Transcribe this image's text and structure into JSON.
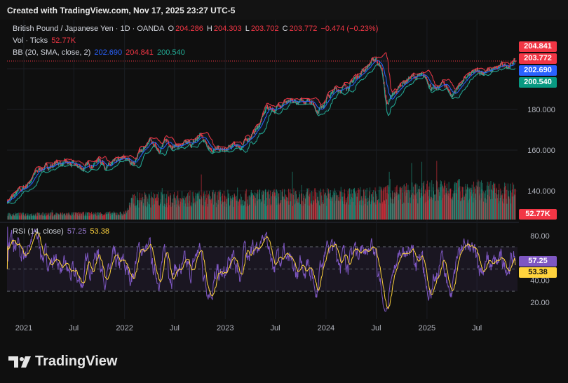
{
  "header": {
    "created": "Created with TradingView.com, Nov 17, 2025 23:27 UTC-5"
  },
  "legend": {
    "title": "British Pound / Japanese Yen · 1D · OANDA",
    "o_label": "O",
    "o_value": "204.286",
    "h_label": "H",
    "h_value": "204.303",
    "l_label": "L",
    "l_value": "203.702",
    "c_label": "C",
    "c_value": "203.772",
    "change": "−0.474 (−0.23%)",
    "vol_label": "Vol · Ticks",
    "vol_value": "52.77K",
    "bb_label": "BB (20, SMA, close, 2)",
    "bb_basis": "202.690",
    "bb_upper": "204.841",
    "bb_lower": "200.540",
    "rsi_label": "RSI (14, close)",
    "rsi_value": "57.25",
    "rsi_ma": "53.38"
  },
  "badges": {
    "upper": "204.841",
    "last": "203.772",
    "basis": "202.690",
    "lower": "200.540",
    "volume": "52.77K",
    "rsi": "57.25",
    "rsi_ma": "53.38"
  },
  "colors": {
    "up": "#22ab94",
    "down": "#f23645",
    "bb_upper": "#f23645",
    "bb_basis": "#2962ff",
    "bb_lower": "#22ab94",
    "rsi": "#7e57c2",
    "rsi_ma": "#ffd33d",
    "background": "#0f0f0f"
  },
  "chart_data": [
    {
      "type": "line",
      "name": "price",
      "ylim": [
        126,
        214
      ],
      "y_ticks": [
        "140.000",
        "160.000",
        "180.000",
        "200.000"
      ],
      "y_tick_values": [
        140,
        160,
        180,
        200
      ],
      "x_ticks": [
        "2021",
        "Jul",
        "2022",
        "Jul",
        "2023",
        "Jul",
        "2024",
        "Jul",
        "2025",
        "Jul"
      ],
      "x_tick_dates": [
        "2021-01-01",
        "2021-07-01",
        "2022-01-01",
        "2022-07-01",
        "2023-01-01",
        "2023-07-01",
        "2024-01-01",
        "2024-07-01",
        "2025-01-01",
        "2025-07-01"
      ],
      "x_range": [
        "2020-11-01",
        "2025-11-25"
      ],
      "series": [
        {
          "values": [
            [
              "2020-11-01",
              135
            ],
            [
              "2020-12-01",
              138
            ],
            [
              "2021-01-01",
              141
            ],
            [
              "2021-02-01",
              147
            ],
            [
              "2021-03-01",
              151
            ],
            [
              "2021-04-01",
              152
            ],
            [
              "2021-05-01",
              154
            ],
            [
              "2021-06-01",
              153
            ],
            [
              "2021-07-01",
              152
            ],
            [
              "2021-08-01",
              151
            ],
            [
              "2021-09-01",
              153
            ],
            [
              "2021-10-01",
              156
            ],
            [
              "2021-11-01",
              152
            ],
            [
              "2021-12-01",
              153
            ],
            [
              "2022-01-01",
              155
            ],
            [
              "2022-02-01",
              154
            ],
            [
              "2022-03-01",
              160
            ],
            [
              "2022-04-01",
              163
            ],
            [
              "2022-05-01",
              161
            ],
            [
              "2022-06-01",
              164
            ],
            [
              "2022-07-01",
              163
            ],
            [
              "2022-08-01",
              162
            ],
            [
              "2022-09-01",
              162
            ],
            [
              "2022-10-01",
              167
            ],
            [
              "2022-11-01",
              163
            ],
            [
              "2022-12-01",
              160
            ],
            [
              "2023-01-01",
              159
            ],
            [
              "2023-02-01",
              162
            ],
            [
              "2023-03-01",
              162
            ],
            [
              "2023-04-01",
              167
            ],
            [
              "2023-05-01",
              172
            ],
            [
              "2023-06-01",
              181
            ],
            [
              "2023-07-01",
              180
            ],
            [
              "2023-08-01",
              185
            ],
            [
              "2023-09-01",
              182
            ],
            [
              "2023-10-01",
              183
            ],
            [
              "2023-11-01",
              186
            ],
            [
              "2023-12-01",
              180
            ],
            [
              "2024-01-01",
              186
            ],
            [
              "2024-02-01",
              189
            ],
            [
              "2024-03-01",
              191
            ],
            [
              "2024-04-01",
              193
            ],
            [
              "2024-05-01",
              198
            ],
            [
              "2024-06-01",
              202
            ],
            [
              "2024-07-01",
              205
            ],
            [
              "2024-07-20",
              200
            ],
            [
              "2024-08-05",
              183
            ],
            [
              "2024-09-01",
              186
            ],
            [
              "2024-10-01",
              193
            ],
            [
              "2024-11-01",
              196
            ],
            [
              "2024-12-01",
              196
            ],
            [
              "2025-01-01",
              194
            ],
            [
              "2025-02-01",
              189
            ],
            [
              "2025-03-01",
              193
            ],
            [
              "2025-04-01",
              187
            ],
            [
              "2025-05-01",
              193
            ],
            [
              "2025-06-01",
              196
            ],
            [
              "2025-07-01",
              198
            ],
            [
              "2025-08-01",
              199
            ],
            [
              "2025-09-01",
              199
            ],
            [
              "2025-10-01",
              201
            ],
            [
              "2025-11-17",
              203.772
            ]
          ]
        }
      ],
      "volume_series": {
        "name": "Vol · Ticks",
        "last": 52.77,
        "values_note_unit": "K",
        "levels": [
          [
            "2020-11-01",
            10
          ],
          [
            "2022-01-01",
            12
          ],
          [
            "2022-02-01",
            40
          ],
          [
            "2024-07-01",
            48
          ],
          [
            "2025-04-01",
            60
          ],
          [
            "2025-11-17",
            52.77
          ]
        ]
      }
    },
    {
      "type": "line",
      "name": "RSI",
      "ylim": [
        0,
        100
      ],
      "y_ticks": [
        "20.00",
        "40.00",
        "80.00"
      ],
      "y_tick_values": [
        20,
        40,
        80
      ],
      "bands": [
        30,
        50,
        70
      ],
      "series": [
        {
          "name": "RSI (14, close)",
          "last": 57.25
        },
        {
          "name": "RSI MA",
          "last": 53.38
        }
      ]
    }
  ]
}
